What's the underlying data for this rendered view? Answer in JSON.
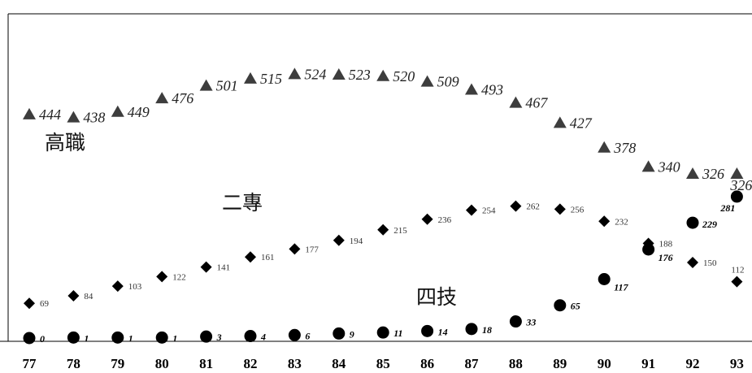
{
  "chart_data": {
    "type": "scatter",
    "categories": [
      "77",
      "78",
      "79",
      "80",
      "81",
      "82",
      "83",
      "84",
      "85",
      "86",
      "87",
      "88",
      "89",
      "90",
      "91",
      "92",
      "93"
    ],
    "series": [
      {
        "name": "高職",
        "marker": "triangle",
        "color": "#3d3d3d",
        "values": [
          444,
          438,
          449,
          476,
          501,
          515,
          524,
          523,
          520,
          509,
          493,
          467,
          427,
          378,
          340,
          326,
          326
        ]
      },
      {
        "name": "二專",
        "marker": "diamond",
        "color": "#000000",
        "values": [
          69,
          84,
          103,
          122,
          141,
          161,
          177,
          194,
          215,
          236,
          254,
          262,
          256,
          232,
          188,
          150,
          112
        ]
      },
      {
        "name": "四技",
        "marker": "circle",
        "color": "#000000",
        "values": [
          0,
          1,
          1,
          1,
          3,
          4,
          6,
          9,
          11,
          14,
          18,
          33,
          65,
          117,
          176,
          229,
          281
        ]
      }
    ],
    "grid": false,
    "legend": "none"
  }
}
